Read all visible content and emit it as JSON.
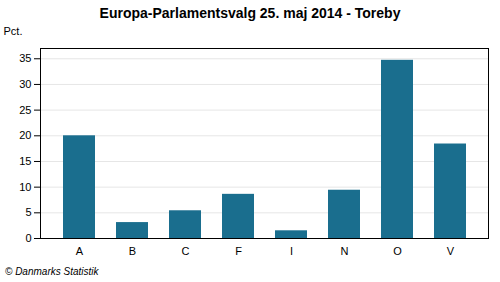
{
  "chart_data": {
    "type": "bar",
    "title": "Europa-Parlamentsvalg 25. maj 2014 - Toreby",
    "categories": [
      "A",
      "B",
      "C",
      "F",
      "I",
      "N",
      "O",
      "V"
    ],
    "values": [
      20.0,
      3.1,
      5.4,
      8.6,
      1.5,
      9.4,
      34.7,
      18.4
    ],
    "color": "#1a6e8e",
    "ylabel": "Pct.",
    "ylim": [
      0,
      37
    ],
    "yticks": [
      0,
      5,
      10,
      15,
      20,
      25,
      30,
      35
    ],
    "grid": true,
    "annotation": "© Danmarks Statistik"
  }
}
